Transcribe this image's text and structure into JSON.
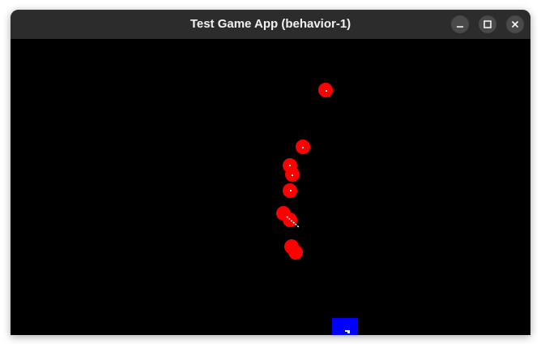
{
  "window": {
    "title": "Test Game App (behavior-1)"
  },
  "icons": {
    "minimize": "minimize-icon",
    "maximize": "maximize-icon",
    "close": "close-icon"
  },
  "colors": {
    "enemy": "#ff0000",
    "player": "#0000ff",
    "bullet": "#ffffff",
    "background": "#000000",
    "titlebar": "#2c2c2c"
  },
  "game": {
    "enemy_count": 10,
    "player_count": 1
  }
}
